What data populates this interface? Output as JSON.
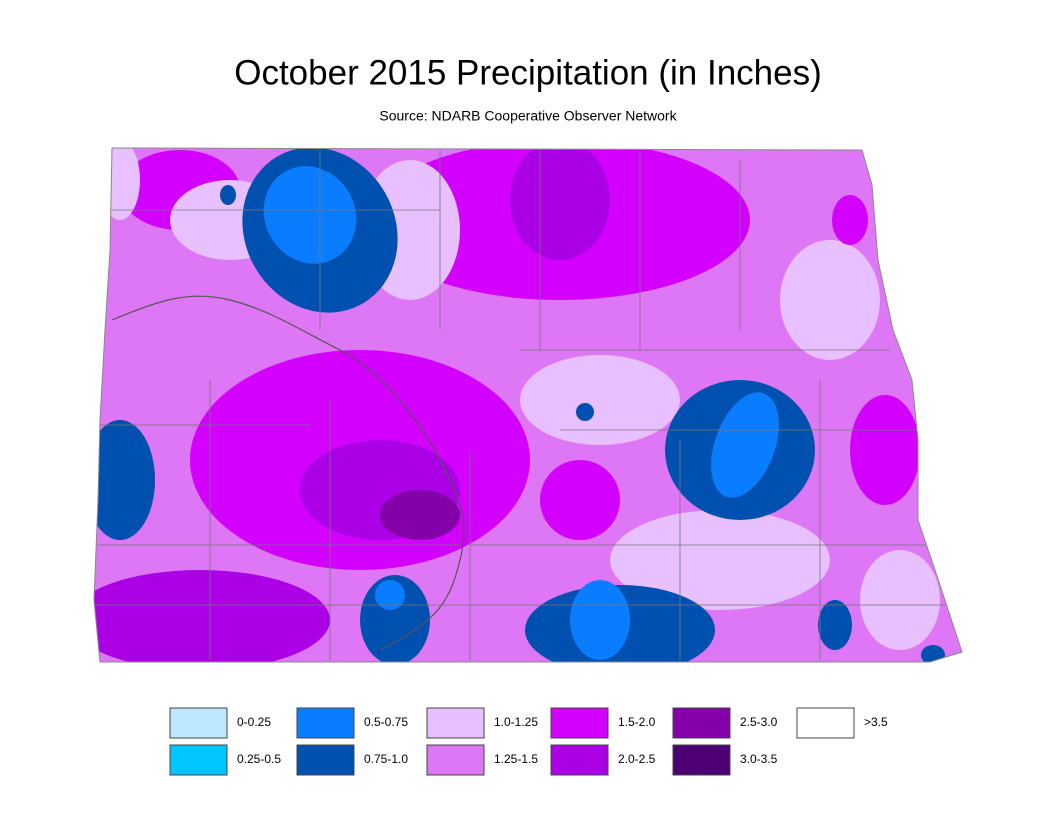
{
  "title": "October 2015 Precipitation (in Inches)",
  "subtitle": "Source: NDARB Cooperative Observer Network",
  "legend": [
    {
      "label": "0-0.25",
      "color": "#bee8ff"
    },
    {
      "label": "0.25-0.5",
      "color": "#00c5ff"
    },
    {
      "label": "0.5-0.75",
      "color": "#0a7cff"
    },
    {
      "label": "0.75-1.0",
      "color": "#0050b0"
    },
    {
      "label": "1.0-1.25",
      "color": "#e8bfff"
    },
    {
      "label": "1.25-1.5",
      "color": "#dd77f5"
    },
    {
      "label": "1.5-2.0",
      "color": "#d300ff"
    },
    {
      "label": "2.0-2.5",
      "color": "#ab00e6"
    },
    {
      "label": "2.5-3.0",
      "color": "#8400a8"
    },
    {
      "label": "3.0-3.5",
      "color": "#4c0073"
    },
    {
      "label": ">3.5",
      "color": "#ffffff"
    }
  ]
}
